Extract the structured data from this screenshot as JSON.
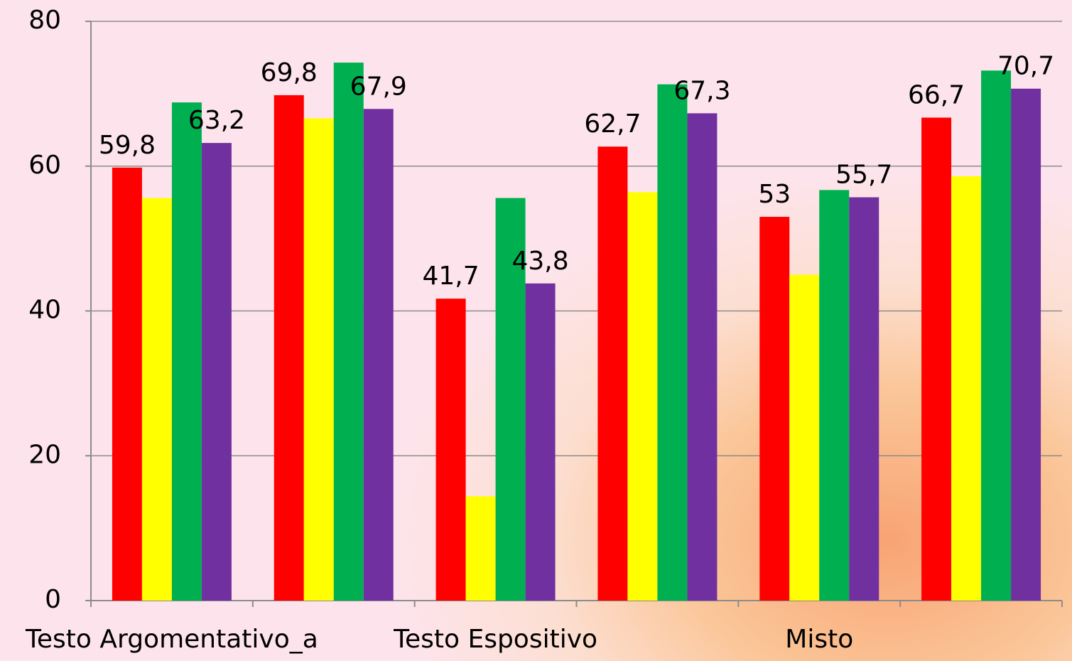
{
  "chart_data": {
    "type": "bar",
    "categories": [
      "Testo Argomentativo_a",
      null,
      "Testo Espositivo",
      null,
      "Misto",
      null
    ],
    "series": [
      {
        "color": "#ff0000",
        "values": [
          59.8,
          69.8,
          41.7,
          62.7,
          53,
          66.7
        ],
        "value_labels": [
          "59,8",
          "69,8",
          "41,7",
          "62,7",
          "53",
          "66,7"
        ]
      },
      {
        "color": "#ffff00",
        "values": [
          55.6,
          66.6,
          14.4,
          56.4,
          45.0,
          58.6
        ]
      },
      {
        "color": "#00b050",
        "values": [
          68.8,
          74.3,
          55.6,
          71.3,
          56.7,
          73.2
        ]
      },
      {
        "color": "#7030a0",
        "values": [
          63.2,
          67.9,
          43.8,
          67.3,
          55.7,
          70.7
        ],
        "value_labels": [
          "63,2",
          "67,9",
          "43,8",
          "67,3",
          "55,7",
          "70,7"
        ]
      }
    ],
    "ylim": [
      0,
      80
    ],
    "yticks": [
      0,
      20,
      40,
      60,
      80
    ],
    "grid": true
  }
}
